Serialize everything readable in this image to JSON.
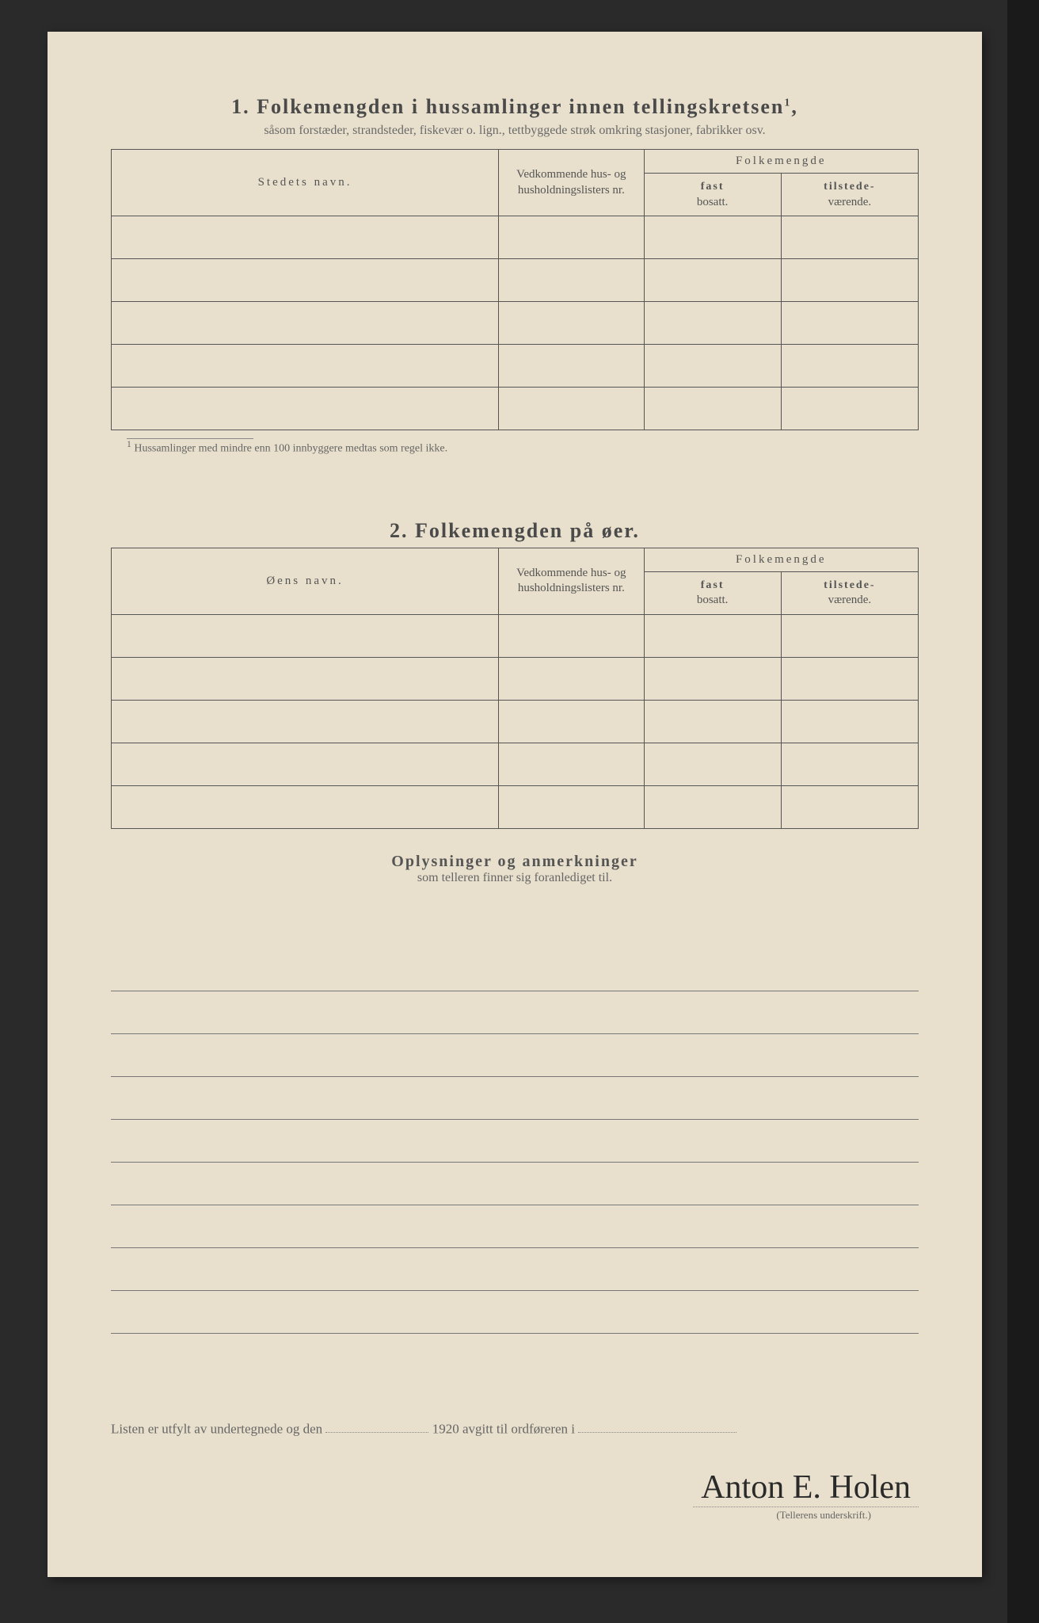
{
  "section1": {
    "number": "1.",
    "title": "Folkemengden i hussamlinger innen tellingskretsen",
    "title_sup": "1",
    "subtitle": "såsom forstæder, strandsteder, fiskevær o. lign., tettbyggede strøk omkring stasjoner, fabrikker osv.",
    "col_name": "Stedets navn.",
    "col_list": "Vedkommende hus- og husholdningslisters nr.",
    "col_folk": "Folkemengde",
    "col_fast": "fast",
    "col_fast2": "bosatt.",
    "col_til": "tilstede-",
    "col_til2": "værende.",
    "footnote_mark": "1",
    "footnote": "Hussamlinger med mindre enn 100 innbyggere medtas som regel ikke.",
    "rows": 5
  },
  "section2": {
    "number": "2.",
    "title": "Folkemengden på øer.",
    "col_name": "Øens navn.",
    "col_list": "Vedkommende hus- og husholdningslisters nr.",
    "col_folk": "Folkemengde",
    "col_fast": "fast",
    "col_fast2": "bosatt.",
    "col_til": "tilstede-",
    "col_til2": "værende.",
    "rows": 5
  },
  "section3": {
    "title": "Oplysninger og anmerkninger",
    "subtitle": "som telleren finner sig foranlediget til.",
    "lines": 9
  },
  "bottom": {
    "text1": "Listen er utfylt av undertegnede og den",
    "year": "1920",
    "text2": "avgitt til ordføreren i",
    "signature": "Anton E. Holen",
    "sig_label": "(Tellerens underskrift.)"
  },
  "colors": {
    "paper": "#e8e0cc",
    "ink": "#4a4a4a",
    "rule": "#555"
  }
}
